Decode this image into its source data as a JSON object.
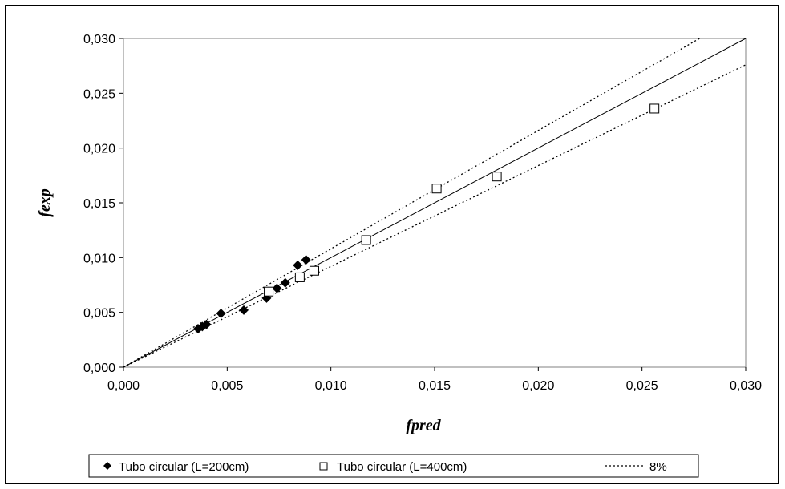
{
  "chart_data": {
    "type": "scatter",
    "xlabel": "fpred",
    "ylabel": "fexp",
    "xlim": [
      0,
      0.03
    ],
    "ylim": [
      0,
      0.03
    ],
    "x_ticks": [
      0,
      0.005,
      0.01,
      0.015,
      0.02,
      0.025,
      0.03
    ],
    "y_ticks": [
      0,
      0.005,
      0.01,
      0.015,
      0.02,
      0.025,
      0.03
    ],
    "x_tick_labels": [
      "0,000",
      "0,005",
      "0,010",
      "0,015",
      "0,020",
      "0,025",
      "0,030"
    ],
    "y_tick_labels": [
      "0,000",
      "0,005",
      "0,010",
      "0,015",
      "0,020",
      "0,025",
      "0,030"
    ],
    "grid": false,
    "legend_position": "bottom",
    "series": [
      {
        "name": "Tubo circular (L=200cm)",
        "marker": "filled-diamond",
        "color": "#000000",
        "points": [
          {
            "x": 0.0036,
            "y": 0.0035
          },
          {
            "x": 0.0038,
            "y": 0.0037
          },
          {
            "x": 0.004,
            "y": 0.0039
          },
          {
            "x": 0.0047,
            "y": 0.0049
          },
          {
            "x": 0.0058,
            "y": 0.0052
          },
          {
            "x": 0.0069,
            "y": 0.0063
          },
          {
            "x": 0.0074,
            "y": 0.0072
          },
          {
            "x": 0.0078,
            "y": 0.0077
          },
          {
            "x": 0.0084,
            "y": 0.0093
          },
          {
            "x": 0.0088,
            "y": 0.0098
          }
        ]
      },
      {
        "name": "Tubo circular (L=400cm)",
        "marker": "open-square",
        "color": "#000000",
        "points": [
          {
            "x": 0.007,
            "y": 0.0069
          },
          {
            "x": 0.0085,
            "y": 0.0082
          },
          {
            "x": 0.0092,
            "y": 0.0088
          },
          {
            "x": 0.0117,
            "y": 0.0116
          },
          {
            "x": 0.0151,
            "y": 0.0163
          },
          {
            "x": 0.018,
            "y": 0.0174
          },
          {
            "x": 0.0256,
            "y": 0.0236
          }
        ]
      }
    ],
    "reference_lines": [
      {
        "name": "",
        "style": "solid",
        "slope": 1.0
      },
      {
        "name": "8%",
        "style": "dotted",
        "slope": 1.08
      },
      {
        "name": "8%",
        "style": "dotted",
        "slope": 0.92
      }
    ]
  }
}
